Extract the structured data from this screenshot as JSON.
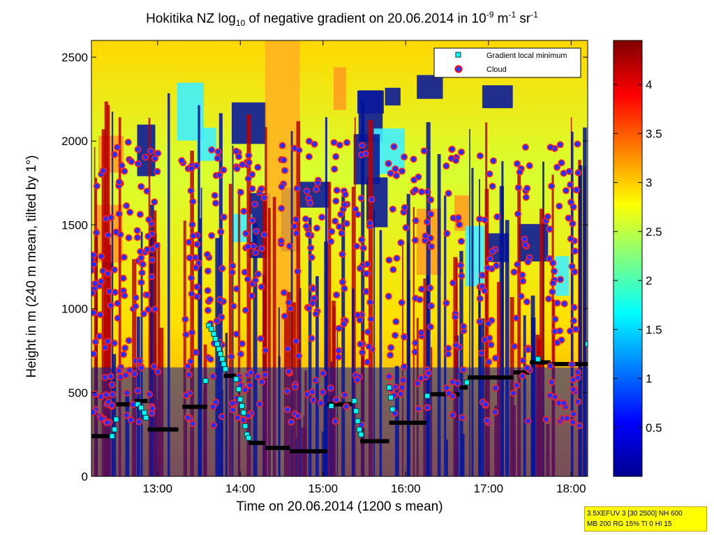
{
  "chart_data": {
    "type": "heatmap",
    "title": {
      "prefix": "Hokitika NZ log",
      "sub": "10",
      "middle": " of negative gradient on 20.06.2014 in 10",
      "sup1": "-9",
      "unit1": " m",
      "sup2": "-1",
      "unit2": " sr",
      "sup3": "-1"
    },
    "xlabel": "Time on 20.06.2014 (1200 s mean)",
    "ylabel": "Height in m (240 m mean, tilted by 1°)",
    "xlim": [
      12.2,
      18.2
    ],
    "ylim": [
      0,
      2600
    ],
    "xticks": [
      {
        "value": 13,
        "label": "13:00"
      },
      {
        "value": 14,
        "label": "14:00"
      },
      {
        "value": 15,
        "label": "15:00"
      },
      {
        "value": 16,
        "label": "16:00"
      },
      {
        "value": 17,
        "label": "17:00"
      },
      {
        "value": 18,
        "label": "18:00"
      }
    ],
    "yticks": [
      0,
      500,
      1000,
      1500,
      2000,
      2500
    ],
    "colorbar": {
      "clim": [
        0,
        4.45
      ],
      "ticks": [
        0.5,
        1,
        1.5,
        2,
        2.5,
        3,
        3.5,
        4
      ],
      "tick_labels": [
        "0.5",
        "1",
        "1.5",
        "2",
        "2.5",
        "3",
        "3.5",
        "4"
      ]
    },
    "legend": {
      "position": "top-right",
      "entries": [
        {
          "label": "Gradient local minimum",
          "marker": "square",
          "color": "#00ffff"
        },
        {
          "label": "Cloud",
          "marker": "circle",
          "color": "#ff0000"
        }
      ]
    },
    "gradient_minimum_steps": [
      {
        "t0": 12.2,
        "t1": 12.45,
        "h": 240
      },
      {
        "t0": 12.5,
        "t1": 12.72,
        "h": 430
      },
      {
        "t0": 12.72,
        "t1": 12.88,
        "h": 450
      },
      {
        "t0": 12.88,
        "t1": 13.25,
        "h": 280
      },
      {
        "t0": 13.3,
        "t1": 13.6,
        "h": 415
      },
      {
        "t0": 13.8,
        "t1": 14.0,
        "h": 600
      },
      {
        "t0": 14.1,
        "t1": 14.3,
        "h": 200
      },
      {
        "t0": 14.3,
        "t1": 14.6,
        "h": 170
      },
      {
        "t0": 14.6,
        "t1": 15.05,
        "h": 150
      },
      {
        "t0": 15.05,
        "t1": 15.35,
        "h": 430
      },
      {
        "t0": 15.45,
        "t1": 15.8,
        "h": 210
      },
      {
        "t0": 15.8,
        "t1": 16.25,
        "h": 320
      },
      {
        "t0": 16.3,
        "t1": 16.65,
        "h": 490
      },
      {
        "t0": 16.65,
        "t1": 16.75,
        "h": 530
      },
      {
        "t0": 16.75,
        "t1": 17.3,
        "h": 590
      },
      {
        "t0": 17.3,
        "t1": 17.5,
        "h": 620
      },
      {
        "t0": 17.5,
        "t1": 17.75,
        "h": 680
      },
      {
        "t0": 17.75,
        "t1": 18.2,
        "h": 670
      }
    ],
    "gradient_minimum_points": [
      [
        12.45,
        240
      ],
      [
        12.48,
        280
      ],
      [
        12.5,
        340
      ],
      [
        12.76,
        430
      ],
      [
        12.8,
        410
      ],
      [
        12.84,
        380
      ],
      [
        12.86,
        350
      ],
      [
        13.58,
        570
      ],
      [
        13.62,
        900
      ],
      [
        13.65,
        880
      ],
      [
        13.68,
        850
      ],
      [
        13.7,
        820
      ],
      [
        13.72,
        790
      ],
      [
        13.74,
        760
      ],
      [
        13.76,
        730
      ],
      [
        13.78,
        700
      ],
      [
        13.8,
        670
      ],
      [
        13.82,
        640
      ],
      [
        13.95,
        580
      ],
      [
        13.98,
        520
      ],
      [
        14.0,
        460
      ],
      [
        14.02,
        420
      ],
      [
        14.04,
        380
      ],
      [
        14.06,
        300
      ],
      [
        14.08,
        250
      ],
      [
        14.1,
        230
      ],
      [
        15.1,
        420
      ],
      [
        15.38,
        450
      ],
      [
        15.4,
        390
      ],
      [
        15.42,
        330
      ],
      [
        15.44,
        280
      ],
      [
        15.46,
        250
      ],
      [
        15.8,
        530
      ],
      [
        15.82,
        470
      ],
      [
        15.84,
        400
      ],
      [
        16.26,
        480
      ],
      [
        16.74,
        560
      ],
      [
        17.6,
        700
      ],
      [
        18.2,
        790
      ]
    ],
    "info_box": {
      "line1": "3.5XEFUV 3 [30 2500] NH 600",
      "line2": "MB 200 RG 15% TI 0 HI 15"
    }
  }
}
